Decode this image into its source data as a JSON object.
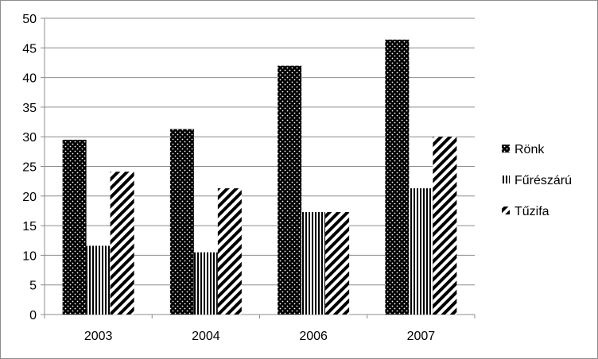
{
  "chart_data": {
    "type": "bar",
    "categories": [
      "2003",
      "2004",
      "2006",
      "2007"
    ],
    "series": [
      {
        "name": "Rönk",
        "values": [
          29.5,
          31.3,
          42.0,
          46.4
        ],
        "pattern": "dots"
      },
      {
        "name": "Fűrészárú",
        "values": [
          11.6,
          10.5,
          17.3,
          21.3
        ],
        "pattern": "vertical-stripes"
      },
      {
        "name": "Tűzifa",
        "values": [
          24.1,
          21.3,
          17.3,
          30.0
        ],
        "pattern": "diagonal-stripes"
      }
    ],
    "title": "",
    "xlabel": "",
    "ylabel": "",
    "ylim": [
      0,
      50
    ],
    "yticks": [
      "0",
      "5",
      "10",
      "15",
      "20",
      "25",
      "30",
      "35",
      "40",
      "45",
      "50"
    ],
    "grid": true,
    "legend_position": "right"
  }
}
